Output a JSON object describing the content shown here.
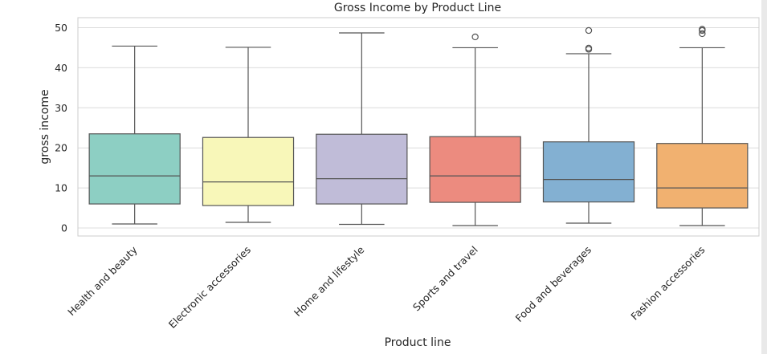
{
  "chart_data": {
    "type": "box",
    "title": "Gross Income by Product Line",
    "xlabel": "Product line",
    "ylabel": "gross income",
    "ylim": [
      -2,
      52.5
    ],
    "yticks": [
      0,
      10,
      20,
      30,
      40,
      50
    ],
    "grid": true,
    "categories": [
      {
        "name": "Health and beauty",
        "color": "#8dcfc3",
        "min": 1.0,
        "q1": 6.0,
        "median": 13.0,
        "q3": 23.5,
        "max": 45.4,
        "outliers": []
      },
      {
        "name": "Electronic accessories",
        "color": "#f8f7b9",
        "min": 1.4,
        "q1": 5.6,
        "median": 11.5,
        "q3": 22.6,
        "max": 45.1,
        "outliers": []
      },
      {
        "name": "Home and lifestyle",
        "color": "#c0bcd8",
        "min": 0.9,
        "q1": 6.0,
        "median": 12.3,
        "q3": 23.4,
        "max": 48.7,
        "outliers": []
      },
      {
        "name": "Sports and travel",
        "color": "#ec8b7f",
        "min": 0.6,
        "q1": 6.4,
        "median": 13.0,
        "q3": 22.8,
        "max": 45.0,
        "outliers": [
          47.7
        ]
      },
      {
        "name": "Food and beverages",
        "color": "#83b0d2",
        "min": 1.2,
        "q1": 6.5,
        "median": 12.1,
        "q3": 21.5,
        "max": 43.5,
        "outliers": [
          44.6,
          44.9,
          49.3
        ]
      },
      {
        "name": "Fashion accessories",
        "color": "#f1b170",
        "min": 0.6,
        "q1": 5.0,
        "median": 10.0,
        "q3": 21.1,
        "max": 45.0,
        "outliers": [
          48.5,
          49.3,
          49.6
        ]
      }
    ]
  }
}
